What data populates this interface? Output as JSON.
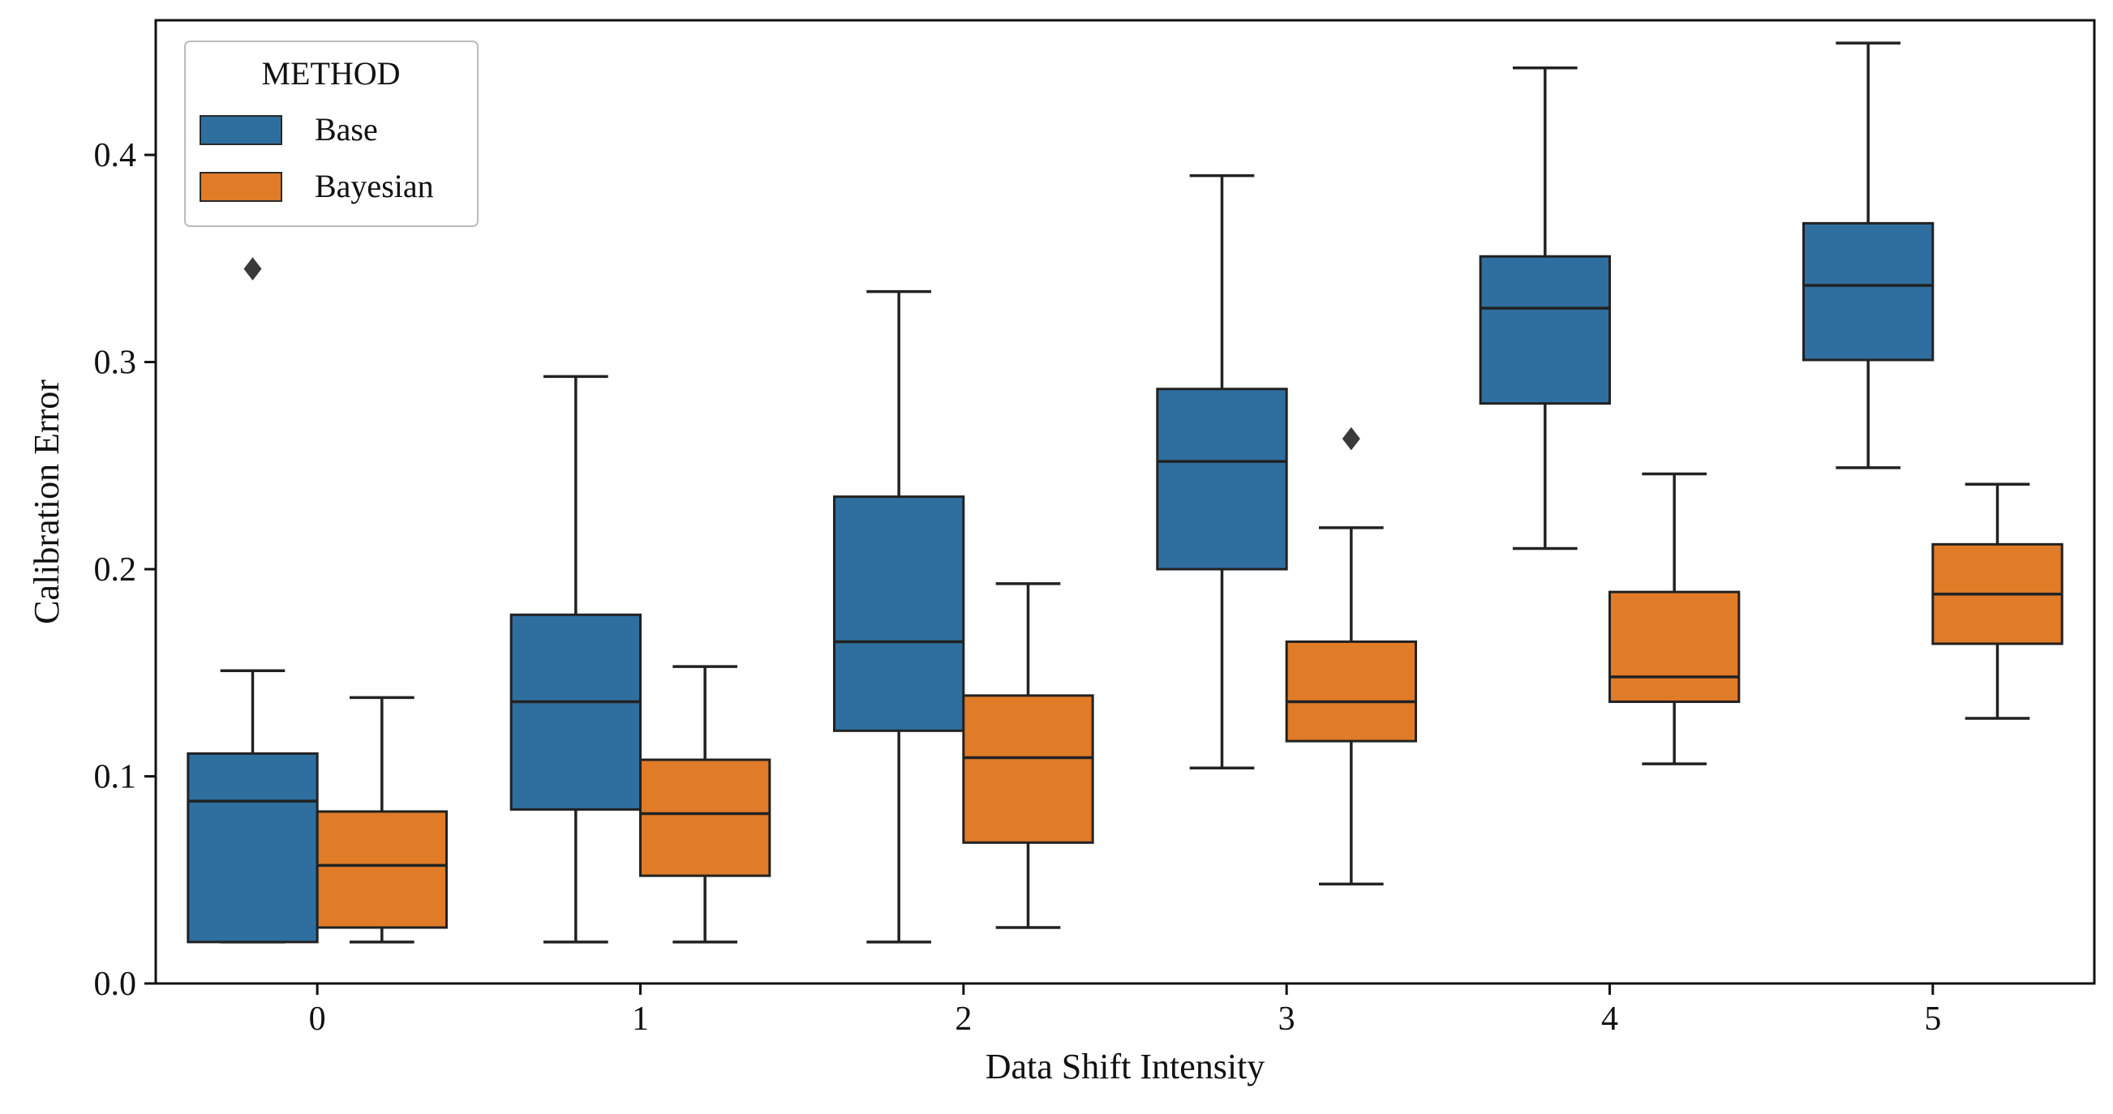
{
  "chart_data": {
    "type": "boxplot",
    "title": "",
    "xlabel": "Data Shift Intensity",
    "ylabel": "Calibration Error",
    "ylim": [
      0.0,
      0.465
    ],
    "yticks": [
      0.0,
      0.1,
      0.2,
      0.3,
      0.4
    ],
    "ytick_labels": [
      "0.0",
      "0.1",
      "0.2",
      "0.3",
      "0.4"
    ],
    "categories": [
      "0",
      "1",
      "2",
      "3",
      "4",
      "5"
    ],
    "grid": false,
    "legend": {
      "title": "METHOD",
      "position": "top-left",
      "entries": [
        "Base",
        "Bayesian"
      ]
    },
    "series": [
      {
        "name": "Base",
        "color": "#2e6f9f",
        "boxes": [
          {
            "whisker_low": 0.02,
            "q1": 0.02,
            "median": 0.088,
            "q3": 0.111,
            "whisker_high": 0.151,
            "outliers": [
              0.345
            ]
          },
          {
            "whisker_low": 0.02,
            "q1": 0.084,
            "median": 0.136,
            "q3": 0.178,
            "whisker_high": 0.293,
            "outliers": []
          },
          {
            "whisker_low": 0.02,
            "q1": 0.122,
            "median": 0.165,
            "q3": 0.235,
            "whisker_high": 0.334,
            "outliers": []
          },
          {
            "whisker_low": 0.104,
            "q1": 0.2,
            "median": 0.252,
            "q3": 0.287,
            "whisker_high": 0.39,
            "outliers": []
          },
          {
            "whisker_low": 0.21,
            "q1": 0.28,
            "median": 0.326,
            "q3": 0.351,
            "whisker_high": 0.442,
            "outliers": []
          },
          {
            "whisker_low": 0.249,
            "q1": 0.301,
            "median": 0.337,
            "q3": 0.367,
            "whisker_high": 0.454,
            "outliers": []
          }
        ]
      },
      {
        "name": "Bayesian",
        "color": "#e07b28",
        "boxes": [
          {
            "whisker_low": 0.02,
            "q1": 0.027,
            "median": 0.057,
            "q3": 0.083,
            "whisker_high": 0.138,
            "outliers": []
          },
          {
            "whisker_low": 0.02,
            "q1": 0.052,
            "median": 0.082,
            "q3": 0.108,
            "whisker_high": 0.153,
            "outliers": []
          },
          {
            "whisker_low": 0.027,
            "q1": 0.068,
            "median": 0.109,
            "q3": 0.139,
            "whisker_high": 0.193,
            "outliers": []
          },
          {
            "whisker_low": 0.048,
            "q1": 0.117,
            "median": 0.136,
            "q3": 0.165,
            "whisker_high": 0.22,
            "outliers": [
              0.263
            ]
          },
          {
            "whisker_low": 0.106,
            "q1": 0.136,
            "median": 0.148,
            "q3": 0.189,
            "whisker_high": 0.246,
            "outliers": []
          },
          {
            "whisker_low": 0.128,
            "q1": 0.164,
            "median": 0.188,
            "q3": 0.212,
            "whisker_high": 0.241,
            "outliers": []
          }
        ]
      }
    ]
  }
}
